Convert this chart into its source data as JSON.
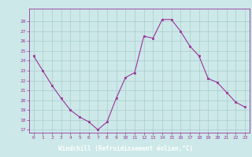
{
  "x": [
    0,
    1,
    2,
    3,
    4,
    5,
    6,
    7,
    8,
    9,
    10,
    11,
    12,
    13,
    14,
    15,
    16,
    17,
    18,
    19,
    20,
    21,
    22,
    23
  ],
  "y": [
    24.5,
    23.0,
    21.5,
    20.2,
    19.0,
    18.3,
    17.8,
    17.0,
    17.8,
    20.2,
    22.3,
    22.8,
    26.5,
    26.3,
    28.2,
    28.2,
    27.0,
    25.5,
    24.5,
    22.2,
    21.8,
    20.8,
    19.8,
    19.3
  ],
  "line_color": "#993399",
  "marker_color": "#993399",
  "bg_color": "#cce8e8",
  "grid_color": "#aacccc",
  "xlabel": "Windchill (Refroidissement éolien,°C)",
  "ylim_min": 17,
  "ylim_max": 29,
  "yticks": [
    17,
    18,
    19,
    20,
    21,
    22,
    23,
    24,
    25,
    26,
    27,
    28
  ],
  "xticks": [
    0,
    1,
    2,
    3,
    4,
    5,
    6,
    7,
    8,
    9,
    10,
    11,
    12,
    13,
    14,
    15,
    16,
    17,
    18,
    19,
    20,
    21,
    22,
    23
  ],
  "xlabel_color": "#ffffff",
  "xlabel_bg": "#7733aa",
  "tick_color": "#993399",
  "spine_color": "#993399"
}
